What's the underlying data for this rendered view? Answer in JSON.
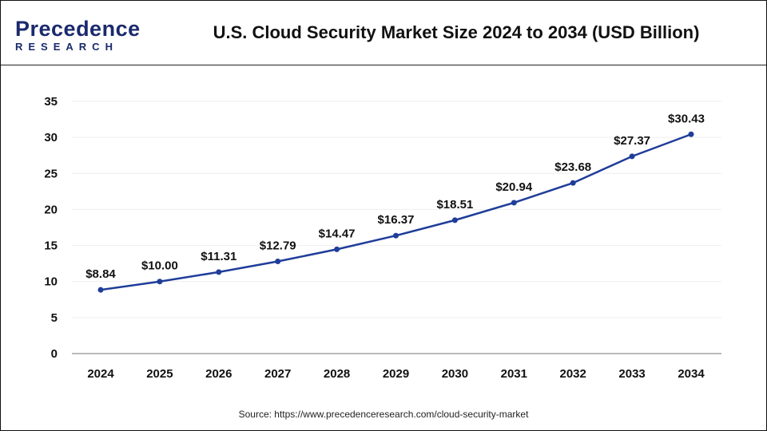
{
  "header": {
    "logo_text": "Precedence",
    "logo_subtext": "RESEARCH",
    "title": "U.S. Cloud Security Market Size 2024 to 2034 (USD Billion)"
  },
  "source": "Source: https://www.precedenceresearch.com/cloud-security-market",
  "chart_data": {
    "type": "line",
    "title": "U.S. Cloud Security Market Size 2024 to 2034 (USD Billion)",
    "categories": [
      "2024",
      "2025",
      "2026",
      "2027",
      "2028",
      "2029",
      "2030",
      "2031",
      "2032",
      "2033",
      "2034"
    ],
    "values": [
      8.84,
      10.0,
      11.31,
      12.79,
      14.47,
      16.37,
      18.51,
      20.94,
      23.68,
      27.37,
      30.43
    ],
    "data_labels": [
      "$8.84",
      "$10.00",
      "$11.31",
      "$12.79",
      "$14.47",
      "$16.37",
      "$18.51",
      "$20.94",
      "$23.68",
      "$27.37",
      "$30.43"
    ],
    "ylim": [
      0,
      35
    ],
    "yticks": [
      0,
      5,
      10,
      15,
      20,
      25,
      30,
      35
    ],
    "grid": true,
    "line_color": "#1f3d99"
  }
}
